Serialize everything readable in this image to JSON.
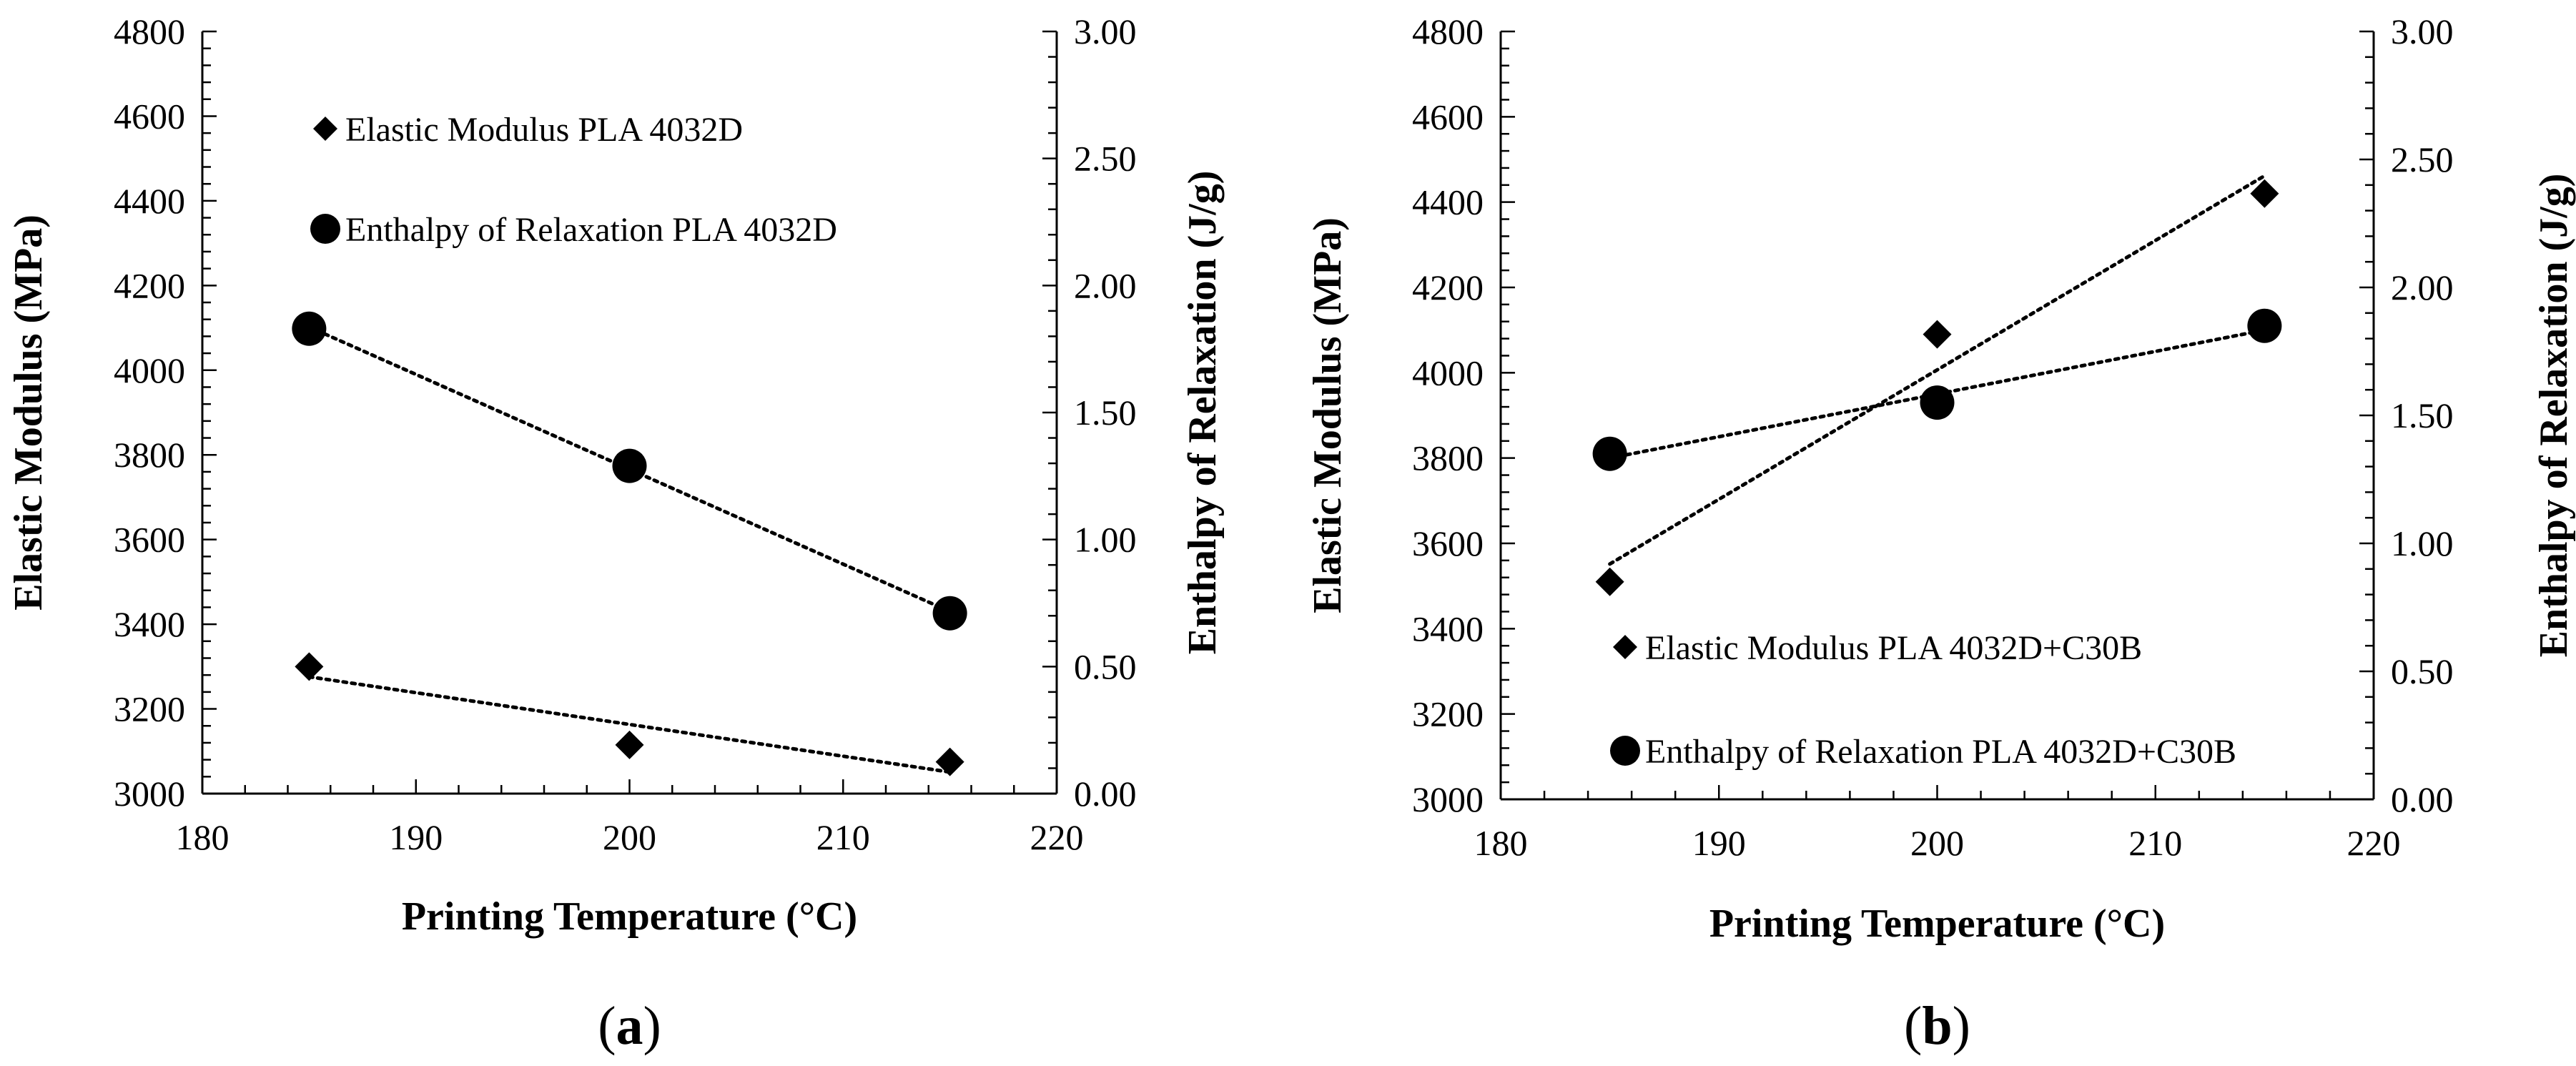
{
  "chart_data": [
    {
      "panel": "a",
      "panel_label": "(a)",
      "type": "scatter",
      "xlabel": "Printing Temperature (°C)",
      "ylabel": "Elastic Modulus (MPa)",
      "y2label": "Enthalpy of Relaxation (J/g)",
      "xlim": [
        180,
        220
      ],
      "ylim": [
        3000,
        4800
      ],
      "y2lim": [
        0,
        3
      ],
      "xticks": [
        "180",
        "190",
        "200",
        "210",
        "220"
      ],
      "yticks": [
        "3000",
        "3200",
        "3400",
        "3600",
        "3800",
        "4000",
        "4200",
        "4400",
        "4600",
        "4800"
      ],
      "y2ticks": [
        "0.00",
        "0.50",
        "1.00",
        "1.50",
        "2.00",
        "2.50",
        "3.00"
      ],
      "legend_position": "upper-left",
      "series": [
        {
          "name": "Elastic Modulus PLA 4032D",
          "marker": "diamond",
          "axis": "left",
          "x": [
            185,
            200,
            215
          ],
          "y": [
            3300,
            3115,
            3075
          ],
          "trendline": "linear"
        },
        {
          "name": "Enthalpy of Relaxation PLA 4032D",
          "marker": "circle",
          "axis": "right",
          "x": [
            185,
            200,
            215
          ],
          "y": [
            1.83,
            1.29,
            0.71
          ],
          "trendline": "linear"
        }
      ]
    },
    {
      "panel": "b",
      "panel_label": "(b)",
      "type": "scatter",
      "xlabel": "Printing Temperature (°C)",
      "ylabel": "Elastic Modulus (MPa)",
      "y2label": "Enthalpy of Relaxation (J/g)",
      "xlim": [
        180,
        220
      ],
      "ylim": [
        3000,
        4800
      ],
      "y2lim": [
        0,
        3
      ],
      "xticks": [
        "180",
        "190",
        "200",
        "210",
        "220"
      ],
      "yticks": [
        "3000",
        "3200",
        "3400",
        "3600",
        "3800",
        "4000",
        "4200",
        "4400",
        "4600",
        "4800"
      ],
      "y2ticks": [
        "0.00",
        "0.50",
        "1.00",
        "1.50",
        "2.00",
        "2.50",
        "3.00"
      ],
      "legend_position": "lower-left",
      "series": [
        {
          "name": "Elastic Modulus PLA 4032D+C30B",
          "marker": "diamond",
          "axis": "left",
          "x": [
            185,
            200,
            215
          ],
          "y": [
            3510,
            4090,
            4420
          ],
          "trendline": "linear"
        },
        {
          "name": "Enthalpy of Relaxation PLA 4032D+C30B",
          "marker": "circle",
          "axis": "right",
          "x": [
            185,
            200,
            215
          ],
          "y": [
            1.35,
            1.55,
            1.85
          ],
          "trendline": "linear"
        }
      ]
    }
  ]
}
